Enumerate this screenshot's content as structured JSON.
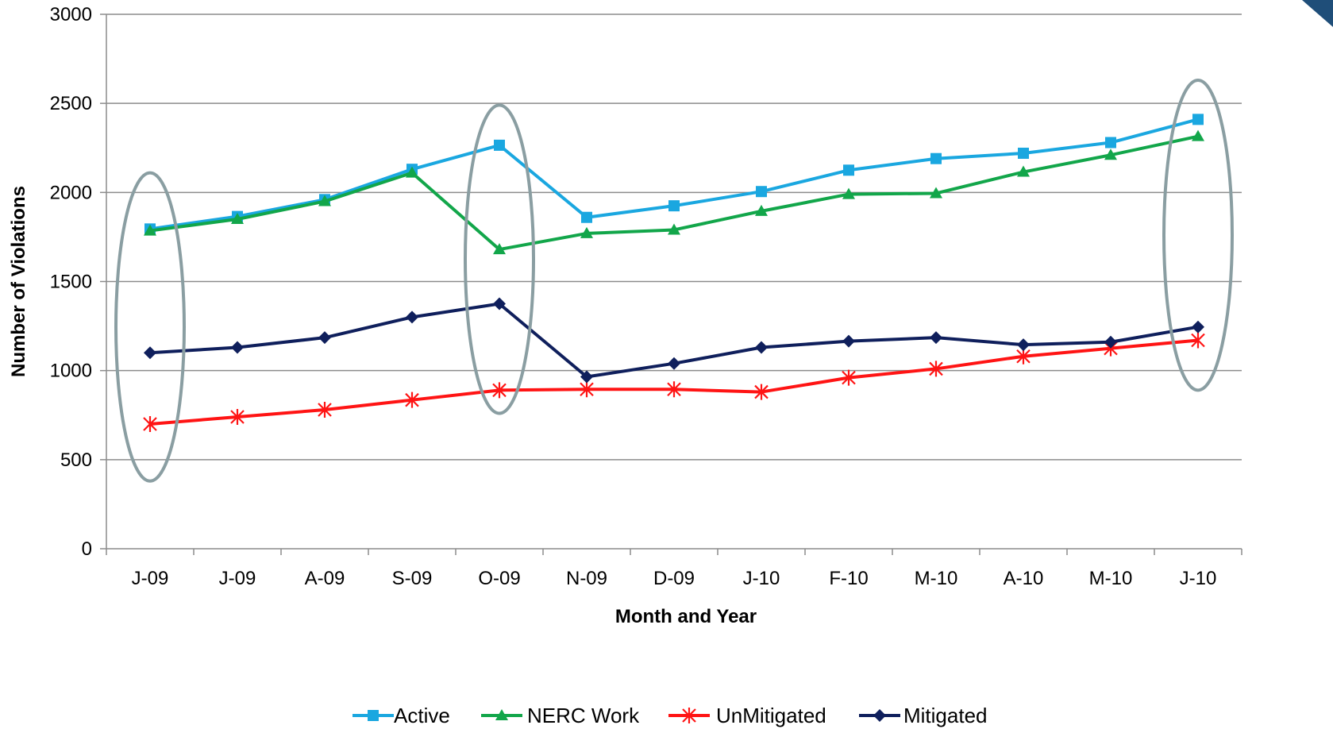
{
  "chart_data": {
    "type": "line",
    "title": "",
    "xlabel": "Month and Year",
    "ylabel": "Number of Violations",
    "categories": [
      "J-09",
      "J-09",
      "A-09",
      "S-09",
      "O-09",
      "N-09",
      "D-09",
      "J-10",
      "F-10",
      "M-10",
      "A-10",
      "M-10",
      "J-10"
    ],
    "ylim": [
      0,
      3000
    ],
    "yticks": [
      0,
      500,
      1000,
      1500,
      2000,
      2500,
      3000
    ],
    "grid": true,
    "legend_position": "bottom",
    "series": [
      {
        "name": "Active",
        "color": "#1aa7e0",
        "marker": "square",
        "values": [
          1795,
          1865,
          1960,
          2130,
          2265,
          1860,
          1925,
          2005,
          2125,
          2190,
          2220,
          2280,
          2410
        ]
      },
      {
        "name": "NERC Work",
        "color": "#12a64a",
        "marker": "triangle",
        "values": [
          1785,
          1850,
          1950,
          2110,
          1680,
          1770,
          1790,
          1895,
          1990,
          1995,
          2115,
          2210,
          2315
        ]
      },
      {
        "name": "UnMitigated",
        "color": "#ff1414",
        "marker": "asterisk",
        "values": [
          700,
          740,
          780,
          835,
          890,
          895,
          895,
          880,
          960,
          1010,
          1080,
          1125,
          1170
        ]
      },
      {
        "name": "Mitigated",
        "color": "#0f1f5c",
        "marker": "diamond",
        "values": [
          1100,
          1130,
          1185,
          1300,
          1375,
          965,
          1040,
          1130,
          1165,
          1185,
          1145,
          1160,
          1245
        ]
      }
    ],
    "highlight_ellipses": [
      {
        "category_index": 0,
        "y_range": [
          380,
          2110
        ]
      },
      {
        "category_index": 4,
        "y_range": [
          760,
          2490
        ]
      },
      {
        "category_index": 12,
        "y_range": [
          890,
          2630
        ]
      }
    ],
    "highlight_color": "#8a9ea2"
  }
}
